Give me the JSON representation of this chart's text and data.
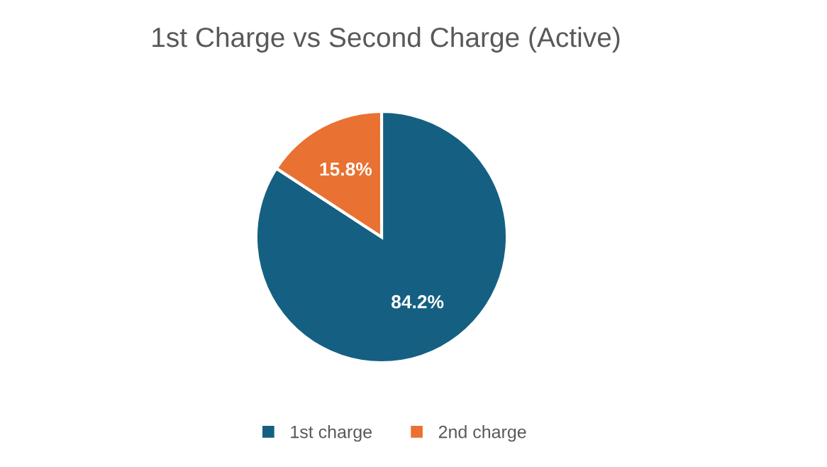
{
  "chart_data": {
    "type": "pie",
    "title": "1st Charge vs Second Charge (Active)",
    "categories": [
      "1st charge",
      "2nd charge"
    ],
    "values": [
      84.2,
      15.8
    ],
    "value_labels": [
      "84.2%",
      "15.8%"
    ],
    "colors": [
      "#156082",
      "#e97132"
    ],
    "legend": "bottom"
  }
}
